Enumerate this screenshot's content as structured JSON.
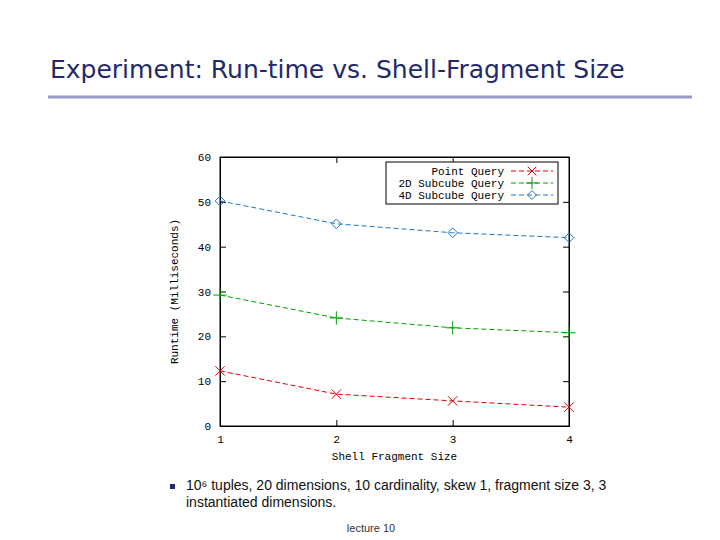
{
  "chart_data": {
    "type": "line",
    "title": "Experiment: Run-time vs. Shell-Fragment Size",
    "x_label": "Shell Fragment Size",
    "y_label": "Runtime (Milliseconds)",
    "annotations": [
      "10⁶ tuples, 20 dimensions, 10 cardinality, skew 1, fragment size 3, 3 instantiated dimensions.",
      "lecture 10"
    ],
    "x": [
      1,
      2,
      3,
      4
    ],
    "series": [
      {
        "name": "Point Query",
        "color": "#e00000",
        "marker": "x",
        "line_style": "dashed",
        "values": [
          12.3,
          7.1,
          5.6,
          4.2
        ]
      },
      {
        "name": "2D Subcube Query",
        "color": "#00a000",
        "marker": "plus",
        "line_style": "dashed",
        "values": [
          29.2,
          24.1,
          21.9,
          20.8
        ]
      },
      {
        "name": "4D Subcube Query",
        "color": "#1e78c8",
        "marker": "diamond",
        "line_style": "dashed",
        "values": [
          50.2,
          45.1,
          43.1,
          42.0
        ]
      }
    ],
    "xlim": [
      1,
      4
    ],
    "xticks": [
      1,
      2,
      3,
      4
    ],
    "ylim": [
      0,
      60
    ],
    "yticks": [
      0,
      10,
      20,
      30,
      40,
      50,
      60
    ],
    "grid": false,
    "legend": "upper right"
  }
}
